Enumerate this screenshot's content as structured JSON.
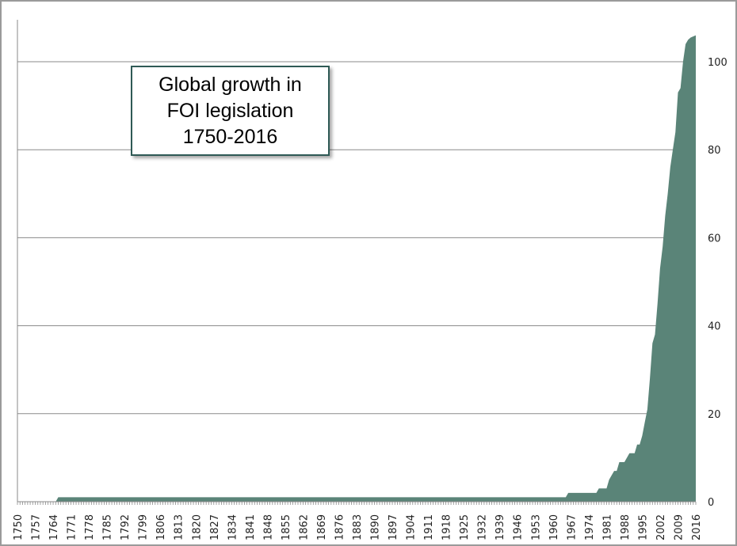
{
  "chart_data": {
    "type": "area",
    "title_lines": [
      "Global growth in",
      "FOI legislation",
      "1750-2016"
    ],
    "xlabel": "",
    "ylabel": "",
    "xlim": [
      1750,
      2016
    ],
    "ylim": [
      0,
      107
    ],
    "x_tick_labels": [
      "1750",
      "1757",
      "1764",
      "1771",
      "1778",
      "1785",
      "1792",
      "1799",
      "1806",
      "1813",
      "1820",
      "1827",
      "1834",
      "1841",
      "1848",
      "1855",
      "1862",
      "1869",
      "1876",
      "1883",
      "1890",
      "1897",
      "1904",
      "1911",
      "1918",
      "1925",
      "1932",
      "1939",
      "1946",
      "1953",
      "1960",
      "1967",
      "1974",
      "1981",
      "1988",
      "1995",
      "2002",
      "2009",
      "2016"
    ],
    "y_ticks": [
      0,
      20,
      40,
      60,
      80,
      100
    ],
    "y_tick_labels": [
      "0",
      "20",
      "40",
      "60",
      "80",
      "100"
    ],
    "y_axis_side": "right",
    "grid": true,
    "color": "#5a8478",
    "points": [
      [
        1750,
        0
      ],
      [
        1765,
        0
      ],
      [
        1766,
        1
      ],
      [
        1965,
        1
      ],
      [
        1966,
        2
      ],
      [
        1977,
        2
      ],
      [
        1978,
        3
      ],
      [
        1981,
        3
      ],
      [
        1982,
        5
      ],
      [
        1983,
        6
      ],
      [
        1984,
        7
      ],
      [
        1985,
        7
      ],
      [
        1986,
        9
      ],
      [
        1988,
        9
      ],
      [
        1989,
        10
      ],
      [
        1990,
        11
      ],
      [
        1992,
        11
      ],
      [
        1993,
        13
      ],
      [
        1994,
        13
      ],
      [
        1995,
        15
      ],
      [
        1996,
        18
      ],
      [
        1997,
        21
      ],
      [
        1998,
        28
      ],
      [
        1999,
        36
      ],
      [
        2000,
        38
      ],
      [
        2001,
        45
      ],
      [
        2002,
        53
      ],
      [
        2003,
        58
      ],
      [
        2004,
        65
      ],
      [
        2005,
        70
      ],
      [
        2006,
        76
      ],
      [
        2007,
        80
      ],
      [
        2008,
        84
      ],
      [
        2009,
        93
      ],
      [
        2010,
        94
      ],
      [
        2011,
        100
      ],
      [
        2012,
        104
      ],
      [
        2013,
        105
      ],
      [
        2014,
        105.5
      ],
      [
        2016,
        106
      ]
    ]
  }
}
